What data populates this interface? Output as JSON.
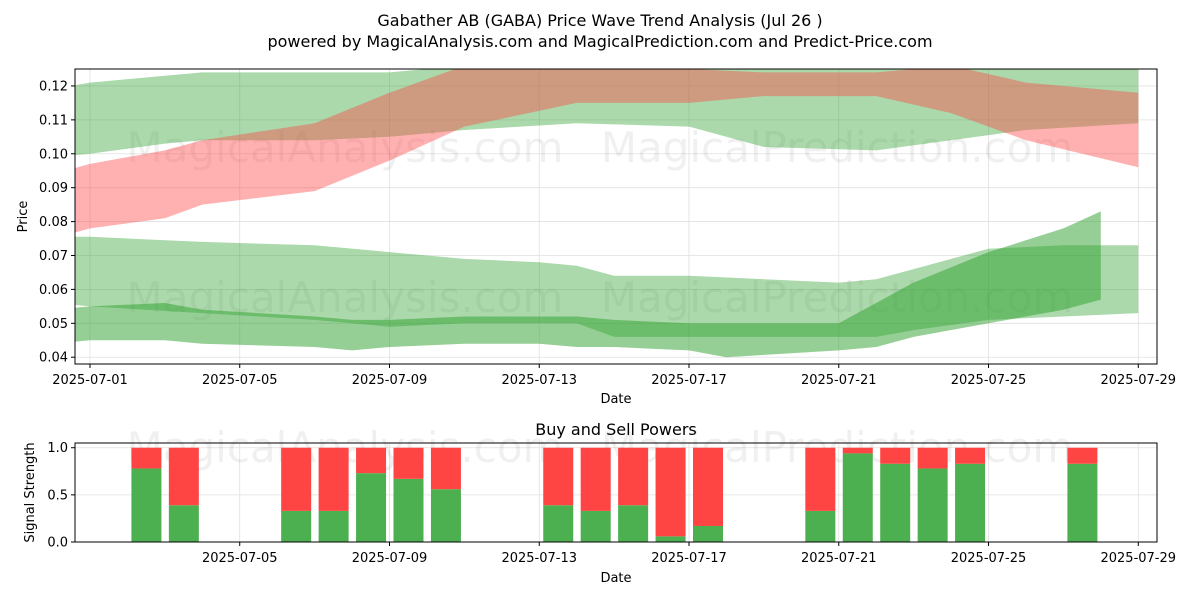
{
  "title_line1": "Gabather AB (GABA) Price Wave Trend Analysis (Jul 26 )",
  "title_line2": "powered by MagicalAnalysis.com and MagicalPrediction.com and Predict-Price.com",
  "watermarks": [
    "MagicalAnalysis.com",
    "MagicalPrediction.com"
  ],
  "colors": {
    "green_band": "#2ca02c",
    "red_band": "#ff4444",
    "buy_bar": "#4caf50",
    "sell_bar": "#ff4444",
    "grid": "#e0e0e0"
  },
  "chart_data": [
    {
      "type": "area",
      "title": "",
      "xlabel": "Date",
      "ylabel": "Price",
      "xlim": [
        "2025-06-30",
        "2025-07-29"
      ],
      "ylim": [
        0.038,
        0.125
      ],
      "xticks": [
        "2025-07-01",
        "2025-07-05",
        "2025-07-09",
        "2025-07-13",
        "2025-07-17",
        "2025-07-21",
        "2025-07-25",
        "2025-07-29"
      ],
      "yticks": [
        0.04,
        0.05,
        0.06,
        0.07,
        0.08,
        0.09,
        0.1,
        0.11,
        0.12
      ],
      "bands": [
        {
          "name": "upper-green-band",
          "color": "green",
          "x": [
            "2025-06-30",
            "2025-07-01",
            "2025-07-03",
            "2025-07-04",
            "2025-07-07",
            "2025-07-09",
            "2025-07-11",
            "2025-07-14",
            "2025-07-17",
            "2025-07-19",
            "2025-07-22",
            "2025-07-24",
            "2025-07-26",
            "2025-07-29"
          ],
          "upper": [
            0.119,
            0.121,
            0.123,
            0.124,
            0.124,
            0.124,
            0.126,
            0.127,
            0.126,
            0.126,
            0.125,
            0.127,
            0.126,
            0.125
          ],
          "lower": [
            0.099,
            0.1,
            0.103,
            0.104,
            0.104,
            0.105,
            0.107,
            0.109,
            0.108,
            0.102,
            0.101,
            0.104,
            0.107,
            0.109
          ]
        },
        {
          "name": "upper-red-band",
          "color": "red",
          "x": [
            "2025-06-30",
            "2025-07-01",
            "2025-07-03",
            "2025-07-04",
            "2025-07-07",
            "2025-07-09",
            "2025-07-11",
            "2025-07-14",
            "2025-07-17",
            "2025-07-19",
            "2025-07-22",
            "2025-07-24",
            "2025-07-26",
            "2025-07-29"
          ],
          "upper": [
            0.094,
            0.097,
            0.101,
            0.104,
            0.109,
            0.118,
            0.126,
            0.127,
            0.125,
            0.124,
            0.124,
            0.126,
            0.121,
            0.118
          ],
          "lower": [
            0.075,
            0.078,
            0.081,
            0.085,
            0.089,
            0.098,
            0.108,
            0.115,
            0.115,
            0.117,
            0.117,
            0.112,
            0.104,
            0.096
          ]
        },
        {
          "name": "lower-green-band",
          "color": "green",
          "x": [
            "2025-06-30",
            "2025-07-01",
            "2025-07-04",
            "2025-07-07",
            "2025-07-09",
            "2025-07-11",
            "2025-07-13",
            "2025-07-14",
            "2025-07-15",
            "2025-07-17",
            "2025-07-19",
            "2025-07-21",
            "2025-07-22",
            "2025-07-23",
            "2025-07-25",
            "2025-07-27",
            "2025-07-29"
          ],
          "upper": [
            0.0755,
            0.0755,
            0.074,
            0.073,
            0.071,
            0.069,
            0.068,
            0.067,
            0.064,
            0.064,
            0.063,
            0.062,
            0.063,
            0.066,
            0.072,
            0.073,
            0.073
          ],
          "lower": [
            0.056,
            0.055,
            0.053,
            0.051,
            0.049,
            0.05,
            0.05,
            0.05,
            0.046,
            0.046,
            0.046,
            0.046,
            0.046,
            0.048,
            0.051,
            0.052,
            0.053
          ]
        },
        {
          "name": "price-wave-band",
          "color": "green",
          "x": [
            "2025-06-30",
            "2025-07-01",
            "2025-07-03",
            "2025-07-04",
            "2025-07-07",
            "2025-07-08",
            "2025-07-09",
            "2025-07-11",
            "2025-07-13",
            "2025-07-14",
            "2025-07-15",
            "2025-07-17",
            "2025-07-18",
            "2025-07-21",
            "2025-07-22",
            "2025-07-23",
            "2025-07-25",
            "2025-07-27",
            "2025-07-28"
          ],
          "upper": [
            0.054,
            0.055,
            0.056,
            0.054,
            0.052,
            0.051,
            0.051,
            0.052,
            0.052,
            0.052,
            0.051,
            0.05,
            0.05,
            0.05,
            0.056,
            0.062,
            0.071,
            0.078,
            0.083
          ],
          "lower": [
            0.044,
            0.045,
            0.045,
            0.044,
            0.043,
            0.042,
            0.043,
            0.044,
            0.044,
            0.043,
            0.043,
            0.042,
            0.04,
            0.042,
            0.043,
            0.046,
            0.05,
            0.054,
            0.057
          ]
        }
      ]
    },
    {
      "type": "bar",
      "title": "Buy and Sell Powers",
      "xlabel": "Date",
      "ylabel": "Signal Strength",
      "xlim": [
        "2025-06-30",
        "2025-07-29"
      ],
      "ylim": [
        0,
        1.05
      ],
      "xticks": [
        "2025-07-05",
        "2025-07-09",
        "2025-07-13",
        "2025-07-17",
        "2025-07-21",
        "2025-07-25",
        "2025-07-29"
      ],
      "yticks": [
        0.0,
        0.5,
        1.0
      ],
      "categories": [
        "2025-07-02",
        "2025-07-03",
        "2025-07-06",
        "2025-07-07",
        "2025-07-08",
        "2025-07-09",
        "2025-07-10",
        "2025-07-13",
        "2025-07-14",
        "2025-07-15",
        "2025-07-16",
        "2025-07-17",
        "2025-07-20",
        "2025-07-21",
        "2025-07-22",
        "2025-07-23",
        "2025-07-24",
        "2025-07-27"
      ],
      "series": [
        {
          "name": "Buy",
          "values": [
            0.78,
            0.39,
            0.33,
            0.33,
            0.73,
            0.67,
            0.56,
            0.39,
            0.33,
            0.39,
            0.06,
            0.17,
            0.33,
            0.94,
            0.83,
            0.78,
            0.83,
            0.83
          ]
        },
        {
          "name": "Sell",
          "values": [
            0.22,
            0.61,
            0.67,
            0.67,
            0.27,
            0.33,
            0.44,
            0.61,
            0.67,
            0.61,
            0.94,
            0.83,
            0.67,
            0.06,
            0.17,
            0.22,
            0.17,
            0.17
          ]
        }
      ]
    }
  ]
}
